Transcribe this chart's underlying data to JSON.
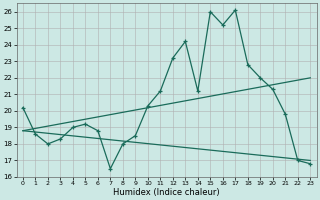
{
  "xlabel": "Humidex (Indice chaleur)",
  "bg_color": "#cce8e4",
  "grid_color": "#b0b0b0",
  "line_color": "#1a6b5a",
  "xlim": [
    -0.5,
    23.5
  ],
  "ylim": [
    16,
    26.5
  ],
  "xticks": [
    0,
    1,
    2,
    3,
    4,
    5,
    6,
    7,
    8,
    9,
    10,
    11,
    12,
    13,
    14,
    15,
    16,
    17,
    18,
    19,
    20,
    21,
    22,
    23
  ],
  "yticks": [
    16,
    17,
    18,
    19,
    20,
    21,
    22,
    23,
    24,
    25,
    26
  ],
  "line1_x": [
    0,
    1,
    2,
    3,
    4,
    5,
    6,
    7,
    8,
    9,
    10,
    11,
    12,
    13,
    14,
    15,
    16,
    17,
    18,
    19,
    20,
    21,
    22,
    23
  ],
  "line1_y": [
    20.2,
    18.6,
    18.0,
    18.3,
    19.0,
    19.2,
    18.8,
    16.5,
    18.0,
    18.5,
    20.3,
    21.2,
    23.2,
    24.2,
    21.2,
    26.0,
    25.2,
    26.1,
    22.8,
    22.0,
    21.3,
    19.8,
    17.0,
    16.8
  ],
  "trend1_x": [
    0,
    23
  ],
  "trend1_y": [
    18.8,
    22.0
  ],
  "trend2_x": [
    0,
    23
  ],
  "trend2_y": [
    18.8,
    17.0
  ]
}
